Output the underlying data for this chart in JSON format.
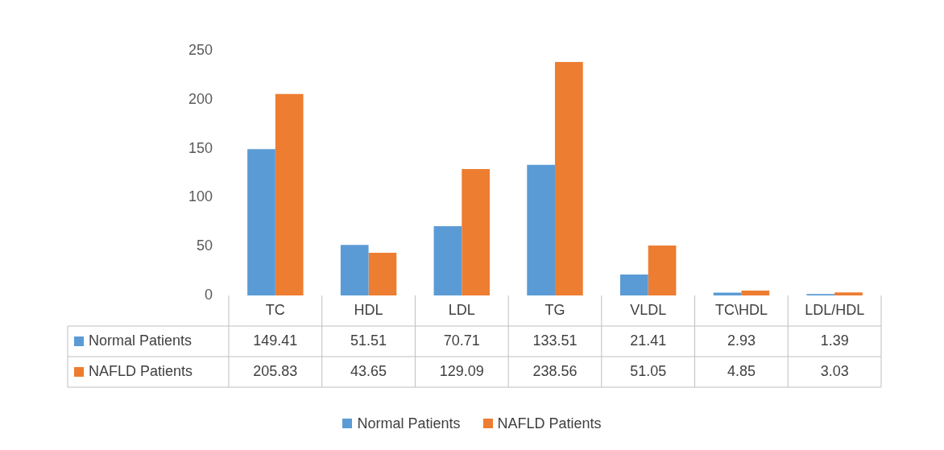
{
  "chart_data": {
    "type": "bar",
    "categories": [
      "TC",
      "HDL",
      "LDL",
      "TG",
      "VLDL",
      "TC\\HDL",
      "LDL/HDL"
    ],
    "series": [
      {
        "name": "Normal Patients",
        "color": "#5b9bd5",
        "values": [
          149.41,
          51.51,
          70.71,
          133.51,
          21.41,
          2.93,
          1.39
        ]
      },
      {
        "name": "NAFLD Patients",
        "color": "#ed7d31",
        "values": [
          205.83,
          43.65,
          129.09,
          238.56,
          51.05,
          4.85,
          3.03
        ]
      }
    ],
    "ylim": [
      0,
      250
    ],
    "yticks": [
      0,
      50,
      100,
      150,
      200,
      250
    ],
    "grid": false,
    "legend": "bottom",
    "data_labels": true
  }
}
